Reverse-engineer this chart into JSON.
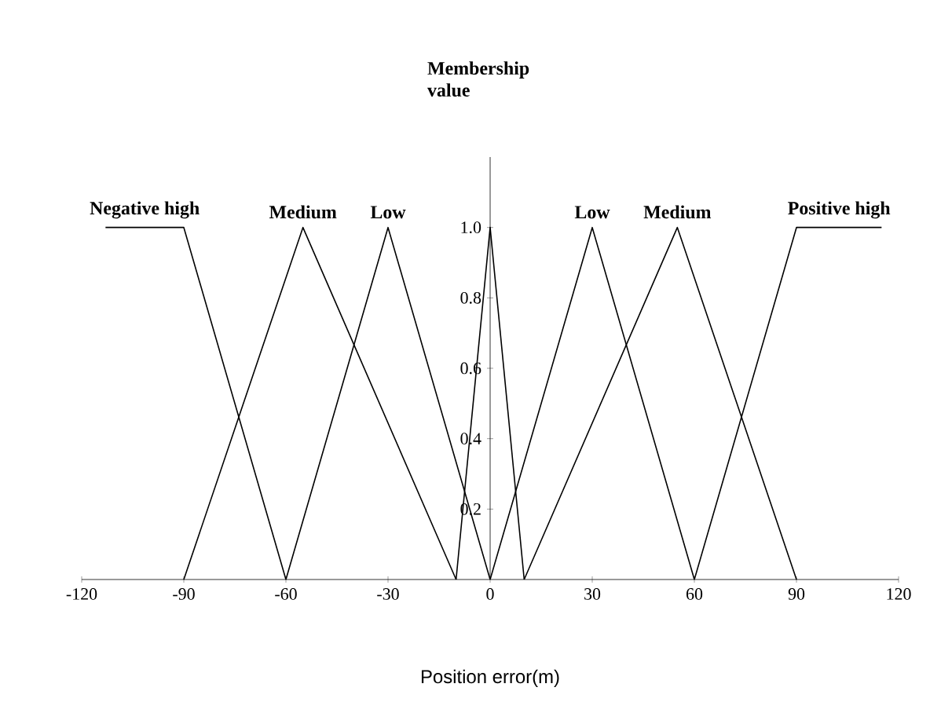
{
  "chart_data": {
    "type": "line",
    "xlabel": "Position error(m)",
    "ylabel": "Membership value",
    "xlim": [
      -120,
      120
    ],
    "xticks": [
      -120,
      -90,
      -60,
      -30,
      0,
      30,
      60,
      90,
      120
    ],
    "ylim": [
      0,
      1.2
    ],
    "yticks": [
      0.2,
      0.4,
      0.6,
      0.8,
      {
        "value": 1,
        "label": "1.0"
      }
    ],
    "grid": false,
    "legend": false,
    "marker": "none",
    "line_style": "solid",
    "series": [
      {
        "name": "Negative high",
        "color": "#000000",
        "x": [
          -113,
          -90,
          -60
        ],
        "values": [
          1,
          1,
          0
        ]
      },
      {
        "name": "Medium",
        "color": "#000000",
        "x": [
          -90,
          -55,
          -10
        ],
        "values": [
          0,
          1,
          0
        ]
      },
      {
        "name": "Low",
        "color": "#000000",
        "x": [
          -60,
          -30,
          0
        ],
        "values": [
          0,
          1,
          0
        ]
      },
      {
        "color": "#000000",
        "x": [
          -10,
          0,
          10
        ],
        "values": [
          0,
          1,
          0
        ]
      },
      {
        "name": "Low",
        "color": "#000000",
        "x": [
          0,
          30,
          60
        ],
        "values": [
          0,
          1,
          0
        ]
      },
      {
        "name": "Medium",
        "color": "#000000",
        "x": [
          10,
          55,
          90
        ],
        "values": [
          0,
          1,
          0
        ]
      },
      {
        "name": "Positive high",
        "color": "#000000",
        "x": [
          60,
          90,
          115
        ],
        "values": [
          0,
          1,
          1
        ]
      }
    ]
  }
}
